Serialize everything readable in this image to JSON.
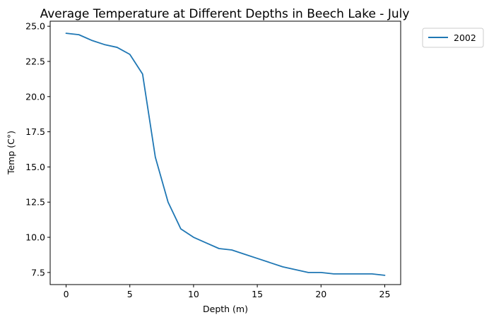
{
  "chart_data": {
    "type": "line",
    "title": "Average Temperature at Different Depths in Beech Lake - July",
    "xlabel": "Depth (m)",
    "ylabel": "Temp (C°)",
    "xlim": [
      -1.25,
      26.25
    ],
    "ylim": [
      6.64,
      25.36
    ],
    "xticks": [
      0,
      5,
      10,
      15,
      20,
      25
    ],
    "yticks": [
      7.5,
      10.0,
      12.5,
      15.0,
      17.5,
      20.0,
      22.5,
      25.0
    ],
    "xtick_labels": [
      "0",
      "5",
      "10",
      "15",
      "20",
      "25"
    ],
    "ytick_labels": [
      "7.5",
      "10.0",
      "12.5",
      "15.0",
      "17.5",
      "20.0",
      "22.5",
      "25.0"
    ],
    "grid": false,
    "legend_position": "outside-top-right",
    "series": [
      {
        "name": "2002",
        "color": "#1f77b4",
        "x": [
          0,
          1,
          2,
          3,
          4,
          5,
          6,
          7,
          8,
          9,
          10,
          11,
          12,
          13,
          14,
          15,
          16,
          17,
          18,
          19,
          20,
          21,
          22,
          23,
          24,
          25
        ],
        "y": [
          24.5,
          24.4,
          24.0,
          23.7,
          23.5,
          23.0,
          21.6,
          15.7,
          12.5,
          10.6,
          10.0,
          9.6,
          9.2,
          9.1,
          8.8,
          8.5,
          8.2,
          7.9,
          7.7,
          7.5,
          7.5,
          7.4,
          7.4,
          7.4,
          7.4,
          7.3
        ]
      }
    ]
  }
}
